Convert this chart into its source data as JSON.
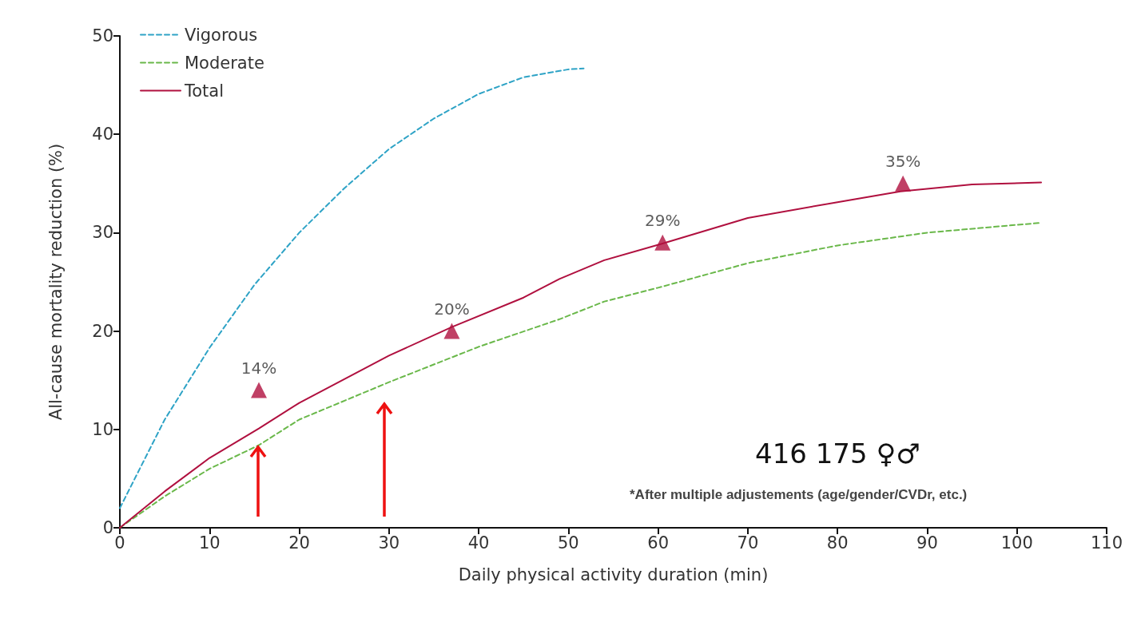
{
  "chart_data": {
    "type": "line",
    "xlabel": "Daily physical activity duration (min)",
    "ylabel": "All-cause mortality reduction (%)",
    "xlim": [
      0,
      110
    ],
    "xticks": [
      0,
      10,
      20,
      30,
      40,
      50,
      60,
      70,
      80,
      90,
      100,
      110
    ],
    "ylim": [
      0,
      50
    ],
    "yticks": [
      0,
      10,
      20,
      30,
      40,
      50
    ],
    "grid": false,
    "legend": "top left",
    "marker": "none",
    "series": [
      {
        "name": "Vigorous",
        "color": "#2ea3c6",
        "line_style": "dashed",
        "x": [
          0,
          2.5,
          5,
          10,
          15,
          20,
          25,
          30,
          35,
          40,
          45,
          50,
          51.7
        ],
        "values": [
          2,
          6.5,
          11,
          18.3,
          24.7,
          30,
          34.5,
          38.5,
          41.6,
          44.1,
          45.8,
          46.6,
          46.7
        ]
      },
      {
        "name": "Moderate",
        "color": "#6ab84a",
        "line_style": "dashed",
        "x": [
          0,
          5,
          10,
          15.5,
          20,
          30,
          40,
          49,
          54,
          60,
          70,
          80,
          90,
          100,
          102.7
        ],
        "values": [
          0,
          3.2,
          6,
          8.4,
          11,
          14.8,
          18.4,
          21.2,
          23,
          24.4,
          26.9,
          28.7,
          30,
          30.8,
          31
        ]
      },
      {
        "name": "Total",
        "color": "#b0103f",
        "line_style": "solid",
        "x": [
          0,
          5,
          10,
          15.5,
          20,
          30,
          37,
          45,
          49,
          54,
          60.5,
          70,
          80,
          87,
          95,
          102.7
        ],
        "values": [
          0,
          3.7,
          7.1,
          10.1,
          12.7,
          17.5,
          20.4,
          23.4,
          25.3,
          27.2,
          28.9,
          31.5,
          33.1,
          34.2,
          34.9,
          35.1
        ]
      },
      {
        "type": "scatter",
        "color": "#b0103f",
        "marker": "triangle",
        "x": [
          15.5,
          37,
          60.5,
          87.3
        ],
        "values": [
          14,
          20,
          29,
          35
        ],
        "value_labels": [
          "14%",
          "20%",
          "29%",
          "35%"
        ]
      }
    ],
    "annotations": [
      "416 175 ♀♂",
      "*After multiple adjustements (age/gender/CVDr, etc.)"
    ]
  }
}
